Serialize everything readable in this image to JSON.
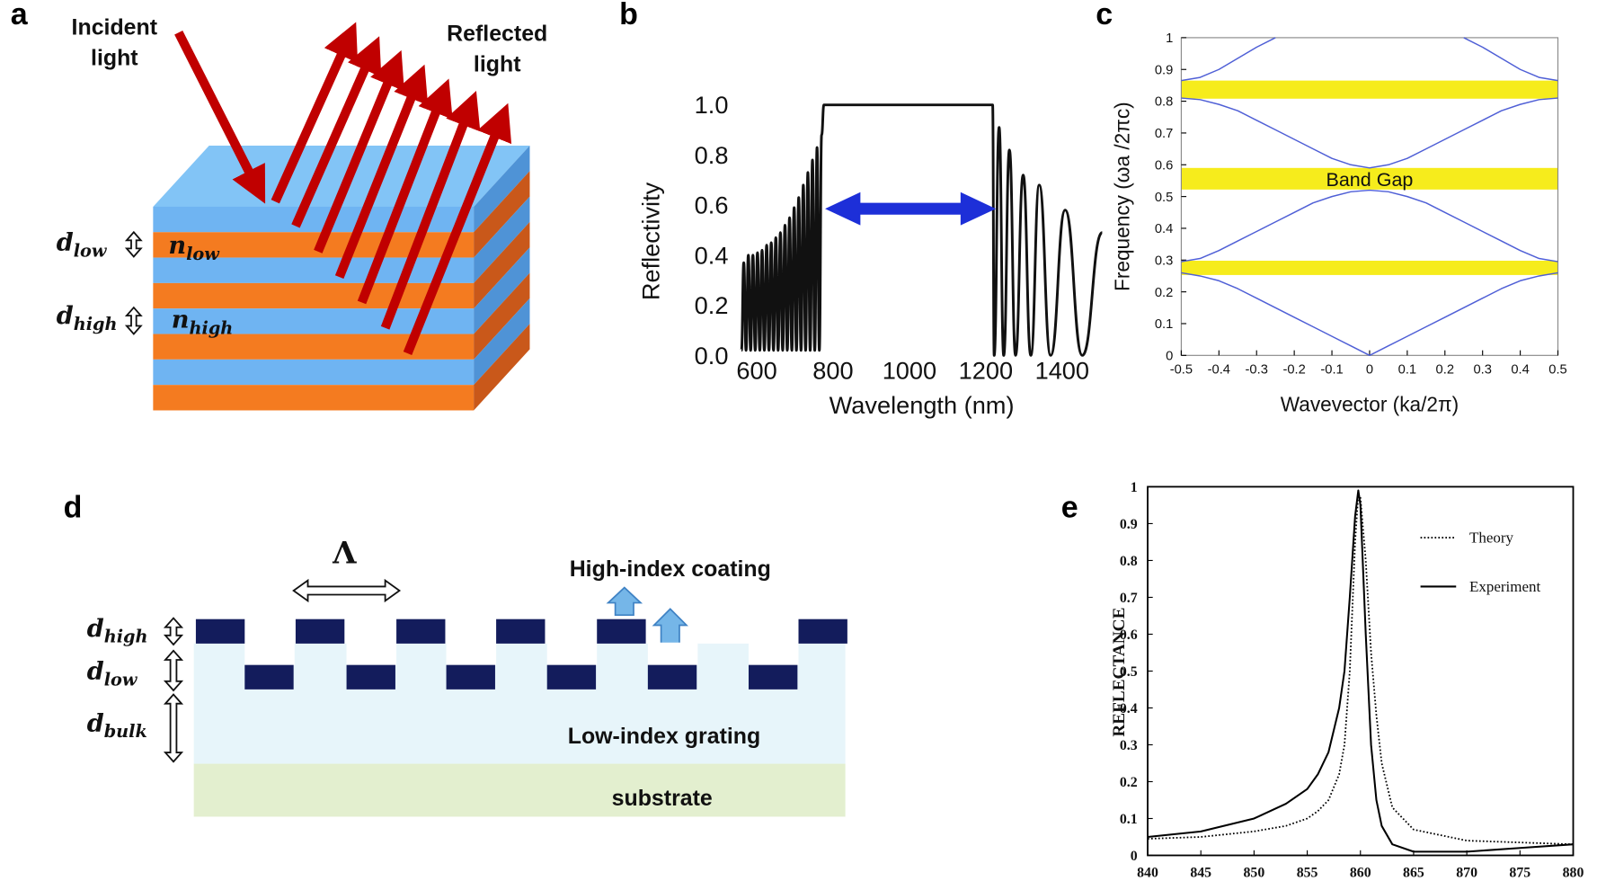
{
  "panel_labels": [
    "a",
    "b",
    "c",
    "d",
    "e"
  ],
  "diagram_a": {
    "incident_light": [
      "Incident",
      "light"
    ],
    "reflected_light": [
      "Reflected",
      "light"
    ],
    "layer_labels": [
      {
        "thickness": {
          "symbol": "d",
          "sub": "low"
        },
        "index": {
          "symbol": "n",
          "sub": "low"
        }
      },
      {
        "thickness": {
          "symbol": "d",
          "sub": "high"
        },
        "index": {
          "symbol": "n",
          "sub": "high"
        }
      }
    ]
  },
  "diagram_d": {
    "period": "Λ",
    "coating": "High-index coating",
    "grating": "Low-index grating",
    "substrate": "substrate",
    "thickness_labels": [
      {
        "symbol": "d",
        "sub": "high"
      },
      {
        "symbol": "d",
        "sub": "low"
      },
      {
        "symbol": "d",
        "sub": "bulk"
      }
    ]
  },
  "chart_data": [
    {
      "type": "line",
      "xlabel": "Wavelength (nm)",
      "ylabel": "Reflectivity",
      "grid": false,
      "x": [
        560,
        566,
        572,
        578,
        584,
        590,
        596,
        602,
        608,
        614,
        620,
        626,
        632,
        638,
        644,
        650,
        656,
        662,
        668,
        674,
        680,
        686,
        692,
        698,
        704,
        710,
        716,
        722,
        728,
        734,
        740,
        746,
        752,
        758,
        764,
        770,
        776,
        1218,
        1222,
        1235,
        1247,
        1262,
        1278,
        1298,
        1318,
        1340,
        1370,
        1408,
        1453,
        1505
      ],
      "series": [
        {
          "color": "#111111",
          "values": [
            0.02,
            0.37,
            0.02,
            0.4,
            0.02,
            0.4,
            0.02,
            0.41,
            0.02,
            0.42,
            0.02,
            0.44,
            0.02,
            0.45,
            0.02,
            0.47,
            0.02,
            0.49,
            0.02,
            0.52,
            0.02,
            0.55,
            0.02,
            0.59,
            0.02,
            0.63,
            0.02,
            0.68,
            0.02,
            0.73,
            0.02,
            0.78,
            0.02,
            0.83,
            0.02,
            0.88,
            1.0,
            1.0,
            0.0,
            0.91,
            0.0,
            0.82,
            0.0,
            0.72,
            0.0,
            0.68,
            0.0,
            0.58,
            0.0,
            0.49
          ]
        }
      ],
      "xlim": [
        555,
        1510
      ],
      "xticks": [
        600,
        800,
        1000,
        1200,
        1400
      ],
      "ylim": [
        0,
        1
      ],
      "yticks": [
        {
          "value": 0,
          "label": "0.0"
        },
        {
          "value": 0.2,
          "label": "0.2"
        },
        {
          "value": 0.4,
          "label": "0.4"
        },
        {
          "value": 0.6,
          "label": "0.6"
        },
        {
          "value": 0.8,
          "label": "0.8"
        },
        {
          "value": 1,
          "label": "1.0"
        }
      ],
      "arrow_color": "#1d2fd8"
    },
    {
      "type": "line",
      "xlabel": "Wavevector (ka/2π)",
      "ylabel": "Frequency (ωa /2πc)",
      "grid": false,
      "x": [
        -0.5,
        -0.45,
        -0.4,
        -0.35,
        -0.3,
        -0.25,
        -0.2,
        -0.15,
        -0.1,
        -0.05,
        0,
        0.05,
        0.1,
        0.15,
        0.2,
        0.25,
        0.3,
        0.35,
        0.4,
        0.45,
        0.5
      ],
      "series": [
        {
          "color": "#4f5fd6",
          "values": [
            0.26,
            0.25,
            0.235,
            0.21,
            0.18,
            0.15,
            0.12,
            0.09,
            0.06,
            0.03,
            0,
            0.03,
            0.06,
            0.09,
            0.12,
            0.15,
            0.18,
            0.21,
            0.235,
            0.25,
            0.26
          ]
        },
        {
          "color": "#4f5fd6",
          "values": [
            0.295,
            0.305,
            0.33,
            0.36,
            0.39,
            0.42,
            0.45,
            0.48,
            0.5,
            0.515,
            0.52,
            0.515,
            0.5,
            0.48,
            0.45,
            0.42,
            0.39,
            0.36,
            0.33,
            0.305,
            0.295
          ]
        },
        {
          "color": "#4f5fd6",
          "values": [
            0.81,
            0.805,
            0.79,
            0.77,
            0.74,
            0.71,
            0.68,
            0.65,
            0.62,
            0.6,
            0.59,
            0.6,
            0.62,
            0.65,
            0.68,
            0.71,
            0.74,
            0.77,
            0.79,
            0.805,
            0.81
          ]
        },
        {
          "color": "#4f5fd6",
          "values": [
            0.865,
            0.875,
            0.9,
            0.935,
            0.97,
            1.0,
            null,
            null,
            null,
            null,
            null,
            null,
            null,
            null,
            null,
            1.0,
            0.97,
            0.935,
            0.9,
            0.875,
            0.865
          ]
        }
      ],
      "bands": [
        {
          "from": 0.808,
          "to": 0.865
        },
        {
          "from": 0.522,
          "to": 0.59
        },
        {
          "from": 0.253,
          "to": 0.298
        }
      ],
      "band_color": "#f6ec1c",
      "annotation": "Band Gap",
      "xlim": [
        -0.5,
        0.5
      ],
      "xticks": [
        -0.5,
        -0.4,
        -0.3,
        -0.2,
        -0.1,
        0,
        0.1,
        0.2,
        0.3,
        0.4,
        0.5
      ],
      "ylim": [
        0,
        1
      ],
      "yticks": [
        0,
        0.1,
        0.2,
        0.3,
        0.4,
        0.5,
        0.6,
        0.7,
        0.8,
        0.9,
        1
      ]
    },
    {
      "type": "line",
      "ylabel": "REFLECTANCE",
      "grid": false,
      "legend": "upper right",
      "x": [
        840,
        845,
        850,
        853,
        855,
        856,
        857,
        858,
        858.5,
        859,
        859.5,
        859.8,
        860,
        860.5,
        861,
        861.5,
        862,
        863,
        865,
        870,
        875,
        880
      ],
      "series": [
        {
          "name": "Theory",
          "color": "#000000",
          "dash": "dotted",
          "values": [
            0.045,
            0.05,
            0.065,
            0.08,
            0.1,
            0.12,
            0.15,
            0.22,
            0.3,
            0.5,
            0.85,
            0.98,
            0.97,
            0.8,
            0.55,
            0.38,
            0.25,
            0.13,
            0.07,
            0.04,
            0.035,
            0.03
          ]
        },
        {
          "name": "Experiment",
          "color": "#000000",
          "dash": "solid",
          "values": [
            0.05,
            0.065,
            0.1,
            0.14,
            0.18,
            0.22,
            0.28,
            0.4,
            0.5,
            0.7,
            0.92,
            0.99,
            0.95,
            0.6,
            0.3,
            0.15,
            0.08,
            0.03,
            0.01,
            0.01,
            0.02,
            0.03
          ]
        }
      ],
      "xlim": [
        840,
        880
      ],
      "xticks": [
        840,
        845,
        850,
        855,
        860,
        865,
        870,
        875,
        880
      ],
      "ylim": [
        0,
        1
      ],
      "yticks": [
        0,
        0.1,
        0.2,
        0.3,
        0.4,
        0.5,
        0.6,
        0.7,
        0.8,
        0.9,
        1
      ]
    }
  ]
}
